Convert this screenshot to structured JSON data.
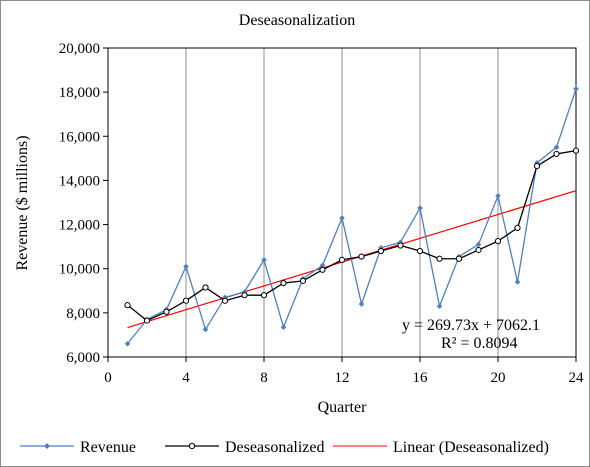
{
  "chart_data": {
    "type": "line",
    "title": "Deseasonalization",
    "xlabel": "Quarter",
    "ylabel": "Revenue  ($ millions)",
    "xlim": [
      0,
      24
    ],
    "ylim": [
      6000,
      20000
    ],
    "x_ticks": [
      "0",
      "4",
      "8",
      "12",
      "16",
      "20",
      "24"
    ],
    "y_ticks": [
      "6,000",
      "8,000",
      "10,000",
      "12,000",
      "14,000",
      "16,000",
      "18,000",
      "20,000"
    ],
    "x_tick_values": [
      0,
      4,
      8,
      12,
      16,
      20,
      24
    ],
    "y_tick_values": [
      6000,
      8000,
      10000,
      12000,
      14000,
      16000,
      18000,
      20000
    ],
    "vertical_gridlines": [
      4,
      8,
      12,
      16,
      20
    ],
    "x": [
      1,
      2,
      3,
      4,
      5,
      6,
      7,
      8,
      9,
      10,
      11,
      12,
      13,
      14,
      15,
      16,
      17,
      18,
      19,
      20,
      21,
      22,
      23,
      24
    ],
    "series": [
      {
        "name": "Revenue",
        "color": "#4f81bd",
        "marker": "diamond",
        "values": [
          6600,
          7700,
          8150,
          10100,
          7250,
          8700,
          8950,
          10400,
          7350,
          9550,
          10150,
          12300,
          8400,
          10950,
          11200,
          12750,
          8300,
          10550,
          11100,
          13300,
          9400,
          14800,
          15500,
          18150
        ]
      },
      {
        "name": "Deseasonalized",
        "color": "#000000",
        "marker": "circle",
        "values": [
          8350,
          7650,
          8050,
          8550,
          9150,
          8550,
          8800,
          8800,
          9350,
          9450,
          9950,
          10400,
          10550,
          10800,
          11050,
          10800,
          10450,
          10450,
          10850,
          11250,
          11850,
          14650,
          15200,
          15350
        ]
      }
    ],
    "trendline": {
      "name": "Linear (Deseasonalized)",
      "color": "#ff0000",
      "slope": 269.73,
      "intercept": 7062.1,
      "x_range": [
        1,
        24
      ],
      "equation": "y = 269.73x  + 7062.1",
      "r_squared": "R² = 0.8094"
    },
    "legend_position": "bottom"
  }
}
